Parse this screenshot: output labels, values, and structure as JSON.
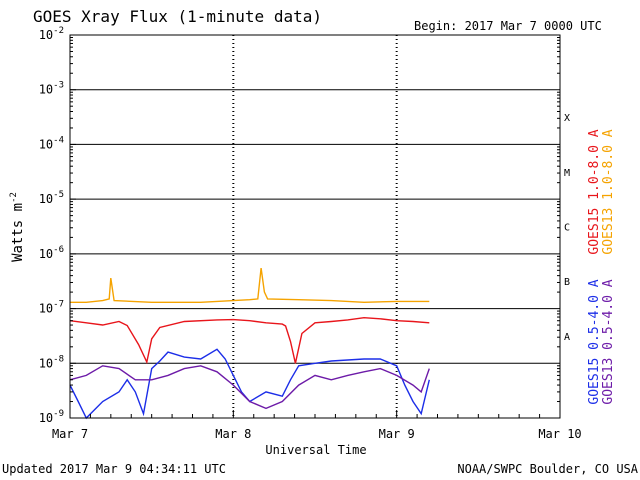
{
  "chart_data": {
    "type": "line",
    "title": "GOES Xray Flux (1-minute data)",
    "begin_label": "Begin:  2017 Mar 7 0000 UTC",
    "xlabel": "Universal Time",
    "ylabel_base": "Watts m",
    "ylabel_exp": "-2",
    "updated": "Updated 2017 Mar  9 04:34:11 UTC",
    "credit": "NOAA/SWPC Boulder, CO USA",
    "x_ticks": [
      {
        "day": 0,
        "label": "Mar 7"
      },
      {
        "day": 1,
        "label": "Mar 8"
      },
      {
        "day": 2,
        "label": "Mar 9"
      },
      {
        "day": 3,
        "label": "Mar 10"
      }
    ],
    "xlim_days": [
      0,
      3
    ],
    "y_scale": "log",
    "ylim": [
      1e-09,
      0.01
    ],
    "y_ticks": [
      {
        "exp": -9,
        "base": "10",
        "sup": "-9"
      },
      {
        "exp": -8,
        "base": "10",
        "sup": "-8"
      },
      {
        "exp": -7,
        "base": "10",
        "sup": "-7"
      },
      {
        "exp": -6,
        "base": "10",
        "sup": "-6"
      },
      {
        "exp": -5,
        "base": "10",
        "sup": "-5"
      },
      {
        "exp": -4,
        "base": "10",
        "sup": "-4"
      },
      {
        "exp": -3,
        "base": "10",
        "sup": "-3"
      },
      {
        "exp": -2,
        "base": "10",
        "sup": "-2"
      }
    ],
    "flare_classes": [
      {
        "label": "A",
        "exp": -8
      },
      {
        "label": "B",
        "exp": -7
      },
      {
        "label": "C",
        "exp": -6
      },
      {
        "label": "M",
        "exp": -5
      },
      {
        "label": "X",
        "exp": -4
      }
    ],
    "grid": true,
    "series": [
      {
        "name": "GOES15 1.0-8.0 A",
        "color": "#e8151b",
        "points": [
          [
            0.0,
            6e-08
          ],
          [
            0.1,
            5.5e-08
          ],
          [
            0.2,
            5e-08
          ],
          [
            0.3,
            5.8e-08
          ],
          [
            0.35,
            4.9e-08
          ],
          [
            0.42,
            2.2e-08
          ],
          [
            0.47,
            1.05e-08
          ],
          [
            0.5,
            2.8e-08
          ],
          [
            0.55,
            4.5e-08
          ],
          [
            0.7,
            5.8e-08
          ],
          [
            0.9,
            6.2e-08
          ],
          [
            1.0,
            6.3e-08
          ],
          [
            1.1,
            6e-08
          ],
          [
            1.2,
            5.5e-08
          ],
          [
            1.3,
            5.2e-08
          ],
          [
            1.32,
            4.8e-08
          ],
          [
            1.35,
            2.5e-08
          ],
          [
            1.38,
            1e-08
          ],
          [
            1.42,
            3.5e-08
          ],
          [
            1.5,
            5.5e-08
          ],
          [
            1.6,
            5.8e-08
          ],
          [
            1.7,
            6.2e-08
          ],
          [
            1.8,
            6.8e-08
          ],
          [
            1.9,
            6.5e-08
          ],
          [
            2.0,
            6e-08
          ],
          [
            2.1,
            5.8e-08
          ],
          [
            2.2,
            5.5e-08
          ]
        ]
      },
      {
        "name": "GOES13 1.0-8.0 A",
        "color": "#f5a300",
        "points": [
          [
            0.0,
            1.3e-07
          ],
          [
            0.1,
            1.3e-07
          ],
          [
            0.2,
            1.4e-07
          ],
          [
            0.24,
            1.5e-07
          ],
          [
            0.25,
            3.6e-07
          ],
          [
            0.27,
            1.4e-07
          ],
          [
            0.5,
            1.3e-07
          ],
          [
            0.8,
            1.3e-07
          ],
          [
            1.0,
            1.4e-07
          ],
          [
            1.1,
            1.45e-07
          ],
          [
            1.15,
            1.5e-07
          ],
          [
            1.17,
            5.5e-07
          ],
          [
            1.19,
            2e-07
          ],
          [
            1.21,
            1.5e-07
          ],
          [
            1.4,
            1.45e-07
          ],
          [
            1.6,
            1.4e-07
          ],
          [
            1.8,
            1.3e-07
          ],
          [
            2.0,
            1.35e-07
          ],
          [
            2.2,
            1.35e-07
          ]
        ]
      },
      {
        "name": "GOES15 0.5-4.0 A",
        "color": "#1c2ee8",
        "points": [
          [
            0.0,
            4e-09
          ],
          [
            0.05,
            2e-09
          ],
          [
            0.1,
            1e-09
          ],
          [
            0.2,
            2e-09
          ],
          [
            0.3,
            3e-09
          ],
          [
            0.35,
            5e-09
          ],
          [
            0.4,
            3e-09
          ],
          [
            0.45,
            1.2e-09
          ],
          [
            0.5,
            8e-09
          ],
          [
            0.55,
            1.1e-08
          ],
          [
            0.6,
            1.6e-08
          ],
          [
            0.7,
            1.3e-08
          ],
          [
            0.8,
            1.2e-08
          ],
          [
            0.9,
            1.8e-08
          ],
          [
            0.95,
            1.2e-08
          ],
          [
            1.0,
            6e-09
          ],
          [
            1.05,
            3e-09
          ],
          [
            1.1,
            2e-09
          ],
          [
            1.2,
            3e-09
          ],
          [
            1.3,
            2.5e-09
          ],
          [
            1.35,
            5e-09
          ],
          [
            1.4,
            9e-09
          ],
          [
            1.5,
            1e-08
          ],
          [
            1.6,
            1.1e-08
          ],
          [
            1.8,
            1.2e-08
          ],
          [
            1.9,
            1.2e-08
          ],
          [
            2.0,
            9e-09
          ],
          [
            2.05,
            4e-09
          ],
          [
            2.1,
            2e-09
          ],
          [
            2.15,
            1.2e-09
          ],
          [
            2.2,
            5e-09
          ]
        ]
      },
      {
        "name": "GOES13 0.5-4.0 A",
        "color": "#6d1ba8",
        "points": [
          [
            0.0,
            5e-09
          ],
          [
            0.1,
            6e-09
          ],
          [
            0.2,
            9e-09
          ],
          [
            0.3,
            8e-09
          ],
          [
            0.4,
            5e-09
          ],
          [
            0.5,
            5e-09
          ],
          [
            0.6,
            6e-09
          ],
          [
            0.7,
            8e-09
          ],
          [
            0.8,
            9e-09
          ],
          [
            0.9,
            7e-09
          ],
          [
            1.0,
            4e-09
          ],
          [
            1.1,
            2e-09
          ],
          [
            1.2,
            1.5e-09
          ],
          [
            1.3,
            2e-09
          ],
          [
            1.4,
            4e-09
          ],
          [
            1.5,
            6e-09
          ],
          [
            1.6,
            5e-09
          ],
          [
            1.7,
            6e-09
          ],
          [
            1.8,
            7e-09
          ],
          [
            1.9,
            8e-09
          ],
          [
            2.0,
            6e-09
          ],
          [
            2.1,
            4e-09
          ],
          [
            2.15,
            3e-09
          ],
          [
            2.2,
            8e-09
          ]
        ]
      }
    ]
  }
}
